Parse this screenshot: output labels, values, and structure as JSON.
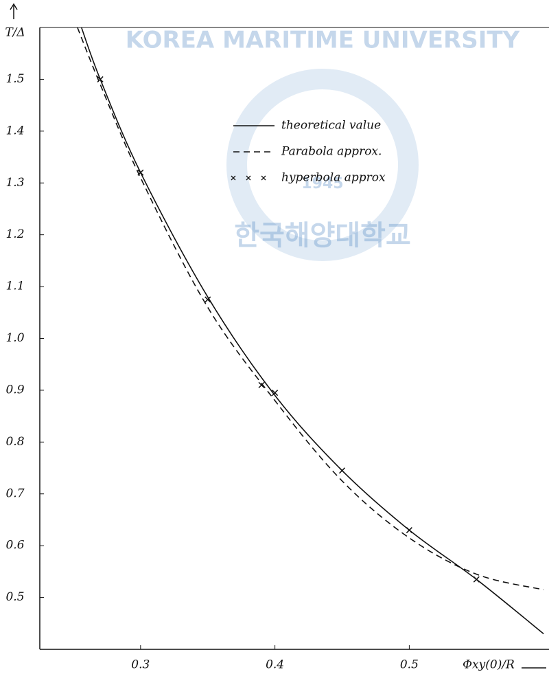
{
  "chart_data": {
    "type": "line",
    "ylabel": "T/Δ",
    "xlabel": "Φxy(0)/R",
    "xlim": [
      0.225,
      0.604
    ],
    "ylim": [
      0.4,
      1.6
    ],
    "xticks": [
      0.3,
      0.4,
      0.5
    ],
    "yticks": [
      0.5,
      0.6,
      0.7,
      0.8,
      0.9,
      {
        "value": 1,
        "label": "1.0"
      },
      1.1,
      1.2,
      1.3,
      1.4,
      1.5
    ],
    "grid": false,
    "legend": "top",
    "series": [
      {
        "name": "theoretical value",
        "color": "#111111",
        "style": "solid",
        "x": [
          0.256,
          0.27,
          0.3,
          0.35,
          0.4,
          0.45,
          0.5,
          0.55,
          0.6
        ],
        "values": [
          1.6,
          1.5,
          1.32,
          1.08,
          0.89,
          0.745,
          0.63,
          0.535,
          0.43
        ]
      },
      {
        "name": "Parabola approx.",
        "color": "#111111",
        "style": "dashed",
        "x": [
          0.253,
          0.27,
          0.3,
          0.35,
          0.4,
          0.45,
          0.5,
          0.55,
          0.6
        ],
        "values": [
          1.6,
          1.49,
          1.31,
          1.06,
          0.88,
          0.725,
          0.615,
          0.545,
          0.515
        ]
      },
      {
        "name": "hyperbola approx",
        "color": "#111111",
        "style": "markers",
        "x": [
          0.27,
          0.3,
          0.35,
          0.39,
          0.4,
          0.45,
          0.5,
          0.55
        ],
        "values": [
          1.5,
          1.32,
          1.075,
          0.91,
          0.895,
          0.745,
          0.63,
          0.535
        ]
      }
    ]
  },
  "watermark": {
    "text": "KOREA MARITIME UNIVERSITY",
    "year": "1945",
    "korean": "한국해양대학교"
  }
}
